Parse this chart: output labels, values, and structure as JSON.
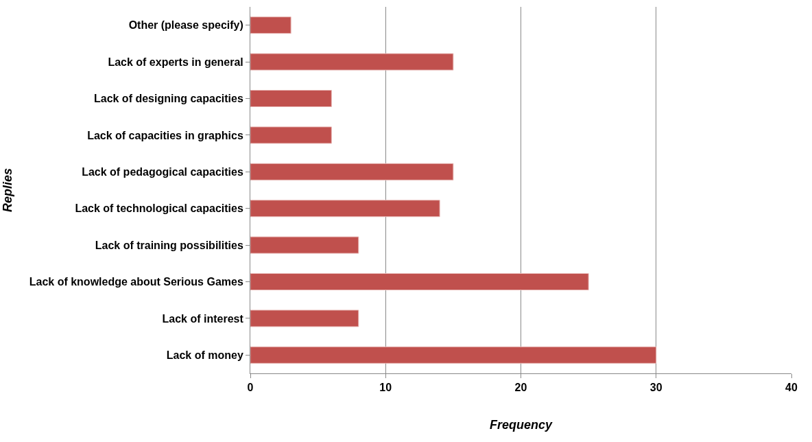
{
  "chart_data": {
    "type": "bar",
    "orientation": "horizontal",
    "xlabel": "Frequency",
    "ylabel": "Replies",
    "categories": [
      "Other (please specify)",
      "Lack of experts in general",
      "Lack of designing capacities",
      "Lack of capacities in graphics",
      "Lack of pedagogical capacities",
      "Lack of technological capacities",
      "Lack of training possibilities",
      "Lack of knowledge about Serious Games",
      "Lack of interest",
      "Lack of money"
    ],
    "values": [
      3,
      15,
      6,
      6,
      15,
      14,
      8,
      25,
      8,
      30
    ],
    "color": "#c0504d",
    "xlim": [
      0,
      40
    ],
    "xticks": [
      0,
      10,
      20,
      30,
      40
    ],
    "grid": "x"
  }
}
